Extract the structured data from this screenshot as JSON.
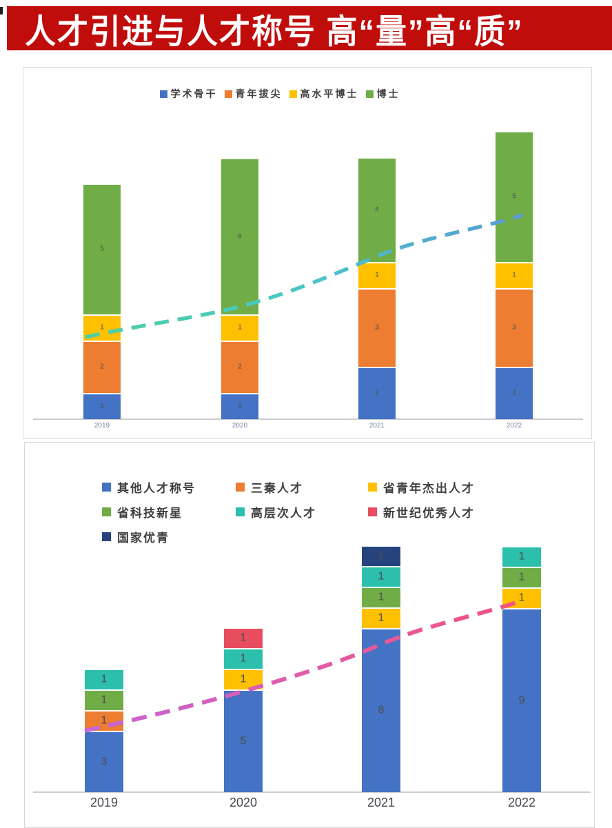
{
  "banner": {
    "title": "人才引进与人才称号 高“量”高“质”",
    "bg_color": "#C10C0C",
    "text_color": "#FFFFFF"
  },
  "chart_data": [
    {
      "type": "bar",
      "stacked": true,
      "title": "",
      "xlabel": "",
      "ylabel": "",
      "grid": false,
      "value_axis_hidden": true,
      "legend_position": "top-center",
      "categories": [
        "2019",
        "2020",
        "2021",
        "2022"
      ],
      "series": [
        {
          "name": "学术骨干",
          "color": "#4472C4",
          "values": [
            1,
            1,
            2,
            2
          ]
        },
        {
          "name": "青年拔尖",
          "color": "#ED7D31",
          "values": [
            2,
            2,
            3,
            3
          ]
        },
        {
          "name": "高水平博士",
          "color": "#FFC000",
          "values": [
            1,
            1,
            1,
            1
          ]
        },
        {
          "name": "博士",
          "color": "#70AD47",
          "values": [
            5,
            6,
            4,
            5
          ]
        }
      ],
      "totals": [
        9,
        10,
        10,
        11
      ],
      "trendline": {
        "style": "dashed",
        "direction": "rising",
        "gradient": [
          "#4FCFA0",
          "#47C9C4",
          "#5B9BD5"
        ]
      }
    },
    {
      "type": "bar",
      "stacked": true,
      "title": "",
      "xlabel": "",
      "ylabel": "",
      "grid": false,
      "value_axis_hidden": true,
      "legend_position": "top-left-3-columns",
      "categories": [
        "2019",
        "2020",
        "2021",
        "2022"
      ],
      "series": [
        {
          "name": "其他人才称号",
          "color": "#4472C4",
          "values": [
            3,
            5,
            8,
            9
          ]
        },
        {
          "name": "三秦人才",
          "color": "#ED7D31",
          "values": [
            1,
            0,
            0,
            0
          ]
        },
        {
          "name": "省青年杰出人才",
          "color": "#FFC000",
          "values": [
            0,
            1,
            1,
            1
          ]
        },
        {
          "name": "省科技新星",
          "color": "#70AD47",
          "values": [
            1,
            0,
            1,
            1
          ]
        },
        {
          "name": "高层次人才",
          "color": "#2BBFAC",
          "values": [
            1,
            1,
            1,
            1
          ]
        },
        {
          "name": "新世纪优秀人才",
          "color": "#E84C5F",
          "values": [
            0,
            1,
            0,
            0
          ]
        },
        {
          "name": "国家优青",
          "color": "#26437E",
          "values": [
            0,
            0,
            1,
            0
          ]
        }
      ],
      "totals": [
        6,
        8,
        12,
        12
      ],
      "trendline": {
        "style": "dashed",
        "direction": "rising",
        "gradient": [
          "#C466D9",
          "#E05BA8",
          "#F0537F"
        ]
      }
    }
  ]
}
